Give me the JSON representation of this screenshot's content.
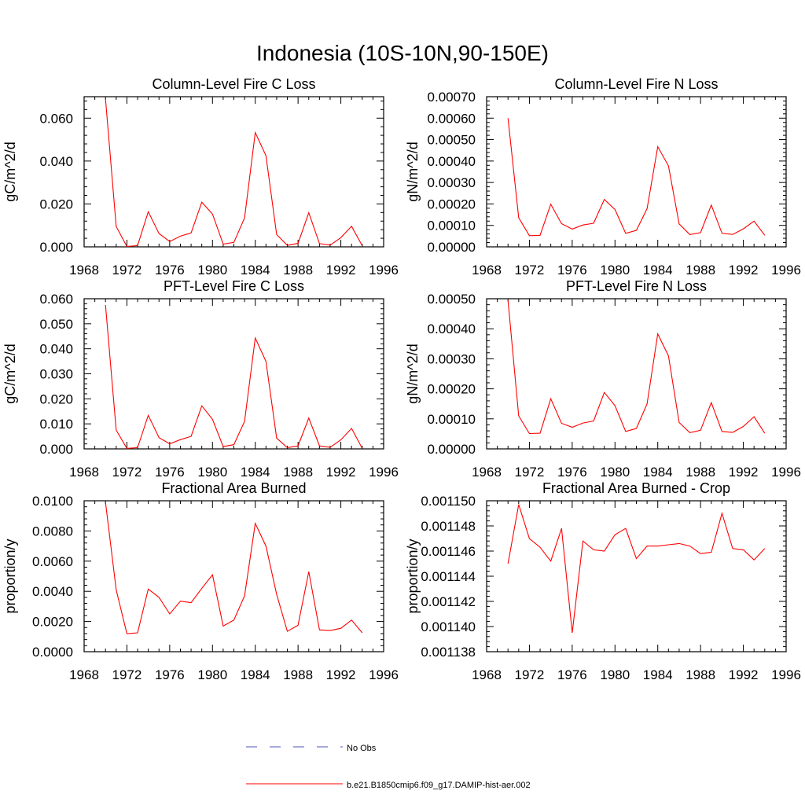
{
  "figure": {
    "title": "Indonesia (10S-10N,90-150E)"
  },
  "legend": {
    "items": [
      {
        "label": "No Obs",
        "color": "#4a50b8",
        "style": "dashed"
      },
      {
        "label": "b.e21.B1850cmip6.f09_g17.DAMIP-hist-aer.002",
        "color": "#ff0000",
        "style": "solid"
      }
    ]
  },
  "chart_data": [
    {
      "type": "line",
      "title": "Column-Level Fire C Loss",
      "ylabel": "gC/m^2/d",
      "xlim": [
        1968,
        1996
      ],
      "ylim": [
        0,
        0.07
      ],
      "xticks": [
        1968,
        1972,
        1976,
        1980,
        1984,
        1988,
        1992,
        1996
      ],
      "xtick_labels": [
        "1968",
        "1972",
        "1976",
        "1980",
        "1984",
        "1988",
        "1992",
        "1996"
      ],
      "yticks": [
        0,
        0.02,
        0.04,
        0.06
      ],
      "ytick_labels": [
        "0.000",
        "0.020",
        "0.040",
        "0.060"
      ],
      "series": [
        {
          "color": "#ff0000",
          "x": [
            1970,
            1971,
            1972,
            1973,
            1974,
            1975,
            1976,
            1977,
            1978,
            1979,
            1980,
            1981,
            1982,
            1983,
            1984,
            1985,
            1986,
            1987,
            1988,
            1989,
            1990,
            1991,
            1992,
            1993,
            1994
          ],
          "values": [
            0.069,
            0.0095,
            0.0002,
            0.0006,
            0.0164,
            0.0062,
            0.0025,
            0.005,
            0.0065,
            0.0208,
            0.0153,
            0.0013,
            0.0021,
            0.0135,
            0.0533,
            0.0425,
            0.0058,
            0.0007,
            0.0016,
            0.0159,
            0.0015,
            0.0008,
            0.0043,
            0.0096,
            0.0005
          ]
        }
      ]
    },
    {
      "type": "line",
      "title": "Column-Level Fire N Loss",
      "ylabel": "gN/m^2/d",
      "xlim": [
        1968,
        1996
      ],
      "ylim": [
        0,
        0.0007
      ],
      "xticks": [
        1968,
        1972,
        1976,
        1980,
        1984,
        1988,
        1992,
        1996
      ],
      "xtick_labels": [
        "1968",
        "1972",
        "1976",
        "1980",
        "1984",
        "1988",
        "1992",
        "1996"
      ],
      "yticks": [
        0,
        0.0001,
        0.0002,
        0.0003,
        0.0004,
        0.0005,
        0.0006,
        0.0007
      ],
      "ytick_labels": [
        "0.00000",
        "0.00010",
        "0.00020",
        "0.00030",
        "0.00040",
        "0.00050",
        "0.00060",
        "0.00070"
      ],
      "series": [
        {
          "color": "#ff0000",
          "x": [
            1970,
            1971,
            1972,
            1973,
            1974,
            1975,
            1976,
            1977,
            1978,
            1979,
            1980,
            1981,
            1982,
            1983,
            1984,
            1985,
            1986,
            1987,
            1988,
            1989,
            1990,
            1991,
            1992,
            1993,
            1994
          ],
          "values": [
            0.0006,
            0.000136,
            5.2e-05,
            5.4e-05,
            0.000199,
            0.000108,
            8.3e-05,
            0.000102,
            0.00011,
            0.000221,
            0.000174,
            6.3e-05,
            7.7e-05,
            0.000178,
            0.000467,
            0.000378,
            0.000107,
            5.7e-05,
            6.6e-05,
            0.000195,
            6.3e-05,
            5.8e-05,
            8.4e-05,
            0.00012,
            5.4e-05
          ]
        }
      ]
    },
    {
      "type": "line",
      "title": "PFT-Level Fire C Loss",
      "ylabel": "gC/m^2/d",
      "xlim": [
        1968,
        1996
      ],
      "ylim": [
        0,
        0.06
      ],
      "xticks": [
        1968,
        1972,
        1976,
        1980,
        1984,
        1988,
        1992,
        1996
      ],
      "xtick_labels": [
        "1968",
        "1972",
        "1976",
        "1980",
        "1984",
        "1988",
        "1992",
        "1996"
      ],
      "yticks": [
        0,
        0.01,
        0.02,
        0.03,
        0.04,
        0.05,
        0.06
      ],
      "ytick_labels": [
        "0.000",
        "0.010",
        "0.020",
        "0.030",
        "0.040",
        "0.050",
        "0.060"
      ],
      "series": [
        {
          "color": "#ff0000",
          "x": [
            1970,
            1971,
            1972,
            1973,
            1974,
            1975,
            1976,
            1977,
            1978,
            1979,
            1980,
            1981,
            1982,
            1983,
            1984,
            1985,
            1986,
            1987,
            1988,
            1989,
            1990,
            1991,
            1992,
            1993,
            1994
          ],
          "values": [
            0.0575,
            0.0075,
            0.0002,
            0.0005,
            0.0134,
            0.0045,
            0.002,
            0.0037,
            0.005,
            0.0172,
            0.0118,
            0.0009,
            0.0017,
            0.011,
            0.0443,
            0.035,
            0.0043,
            0.0005,
            0.0012,
            0.0123,
            0.0012,
            0.0006,
            0.0036,
            0.0082,
            0.0002
          ]
        }
      ]
    },
    {
      "type": "line",
      "title": "PFT-Level Fire N Loss",
      "ylabel": "gN/m^2/d",
      "xlim": [
        1968,
        1996
      ],
      "ylim": [
        0,
        0.0005
      ],
      "xticks": [
        1968,
        1972,
        1976,
        1980,
        1984,
        1988,
        1992,
        1996
      ],
      "xtick_labels": [
        "1968",
        "1972",
        "1976",
        "1980",
        "1984",
        "1988",
        "1992",
        "1996"
      ],
      "yticks": [
        0,
        0.0001,
        0.0002,
        0.0003,
        0.0004,
        0.0005
      ],
      "ytick_labels": [
        "0.00000",
        "0.00010",
        "0.00020",
        "0.00030",
        "0.00040",
        "0.00050"
      ],
      "series": [
        {
          "color": "#ff0000",
          "x": [
            1970,
            1971,
            1972,
            1973,
            1974,
            1975,
            1976,
            1977,
            1978,
            1979,
            1980,
            1981,
            1982,
            1983,
            1984,
            1985,
            1986,
            1987,
            1988,
            1989,
            1990,
            1991,
            1992,
            1993,
            1994
          ],
          "values": [
            0.000495,
            0.00011,
            5.1e-05,
            5.2e-05,
            0.000167,
            8.5e-05,
            7.2e-05,
            8.6e-05,
            9.3e-05,
            0.000188,
            0.000144,
            5.8e-05,
            6.8e-05,
            0.00015,
            0.000383,
            0.00031,
            8.8e-05,
            5.4e-05,
            6.2e-05,
            0.000154,
            5.8e-05,
            5.5e-05,
            7.5e-05,
            0.000107,
            5.2e-05
          ]
        }
      ]
    },
    {
      "type": "line",
      "title": "Fractional Area Burned",
      "ylabel": "proportion/y",
      "xlim": [
        1968,
        1996
      ],
      "ylim": [
        0,
        0.01
      ],
      "xticks": [
        1968,
        1972,
        1976,
        1980,
        1984,
        1988,
        1992,
        1996
      ],
      "xtick_labels": [
        "1968",
        "1972",
        "1976",
        "1980",
        "1984",
        "1988",
        "1992",
        "1996"
      ],
      "yticks": [
        0,
        0.002,
        0.004,
        0.006,
        0.008,
        0.01
      ],
      "ytick_labels": [
        "0.0000",
        "0.0020",
        "0.0040",
        "0.0060",
        "0.0080",
        "0.0100"
      ],
      "series": [
        {
          "color": "#ff0000",
          "x": [
            1970,
            1971,
            1972,
            1973,
            1974,
            1975,
            1976,
            1977,
            1978,
            1979,
            1980,
            1981,
            1982,
            1983,
            1984,
            1985,
            1986,
            1987,
            1988,
            1989,
            1990,
            1991,
            1992,
            1993,
            1994
          ],
          "values": [
            0.0099,
            0.0041,
            0.0012,
            0.00125,
            0.00415,
            0.0036,
            0.0025,
            0.00335,
            0.00325,
            0.0042,
            0.0051,
            0.0017,
            0.0021,
            0.0037,
            0.0085,
            0.007,
            0.0038,
            0.00135,
            0.00175,
            0.0053,
            0.00145,
            0.0014,
            0.00155,
            0.0021,
            0.00125
          ]
        }
      ]
    },
    {
      "type": "line",
      "title": "Fractional Area Burned - Crop",
      "ylabel": "proportion/y",
      "xlim": [
        1968,
        1996
      ],
      "ylim": [
        0.001138,
        0.00115
      ],
      "xticks": [
        1968,
        1972,
        1976,
        1980,
        1984,
        1988,
        1992,
        1996
      ],
      "xtick_labels": [
        "1968",
        "1972",
        "1976",
        "1980",
        "1984",
        "1988",
        "1992",
        "1996"
      ],
      "yticks": [
        0.001138,
        0.00114,
        0.001142,
        0.001144,
        0.001146,
        0.001148,
        0.00115
      ],
      "ytick_labels": [
        "0.001138",
        "0.001140",
        "0.001142",
        "0.001144",
        "0.001146",
        "0.001148",
        "0.001150"
      ],
      "series": [
        {
          "color": "#ff0000",
          "x": [
            1970,
            1971,
            1972,
            1973,
            1974,
            1975,
            1976,
            1977,
            1978,
            1979,
            1980,
            1981,
            1982,
            1983,
            1984,
            1985,
            1986,
            1987,
            1988,
            1989,
            1990,
            1991,
            1992,
            1993,
            1994
          ],
          "values": [
            0.001145,
            0.0011497,
            0.001147,
            0.0011463,
            0.0011452,
            0.0011478,
            0.0011395,
            0.0011468,
            0.0011461,
            0.001146,
            0.0011473,
            0.0011478,
            0.0011454,
            0.0011464,
            0.0011464,
            0.0011465,
            0.0011466,
            0.0011464,
            0.0011458,
            0.0011459,
            0.001149,
            0.0011462,
            0.0011461,
            0.0011453,
            0.0011462
          ]
        }
      ]
    }
  ]
}
